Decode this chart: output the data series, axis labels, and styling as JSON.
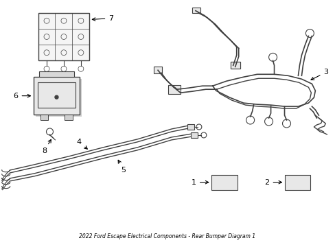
{
  "title": "2022 Ford Escape Electrical Components - Rear Bumper Diagram 1",
  "background_color": "#ffffff",
  "line_color": "#404040",
  "text_color": "#000000",
  "fig_width": 4.89,
  "fig_height": 3.6,
  "dpi": 100
}
